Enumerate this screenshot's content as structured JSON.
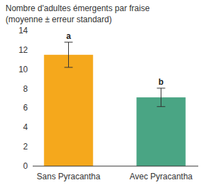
{
  "chart_data": {
    "type": "bar",
    "title": "Nombre d'adultes émergents par fraise",
    "subtitle": "(moyenne ± erreur standard)",
    "categories": [
      "Sans Pyracantha",
      "Avec Pyracantha"
    ],
    "values": [
      11.5,
      7.1
    ],
    "errors": [
      1.3,
      0.95
    ],
    "annotations": [
      "a",
      "b"
    ],
    "colors": [
      "#f5a81c",
      "#4aa584"
    ],
    "ylim": [
      0,
      14
    ],
    "yticks": [
      0,
      2,
      4,
      6,
      8,
      10,
      12,
      14
    ],
    "grid": false
  }
}
